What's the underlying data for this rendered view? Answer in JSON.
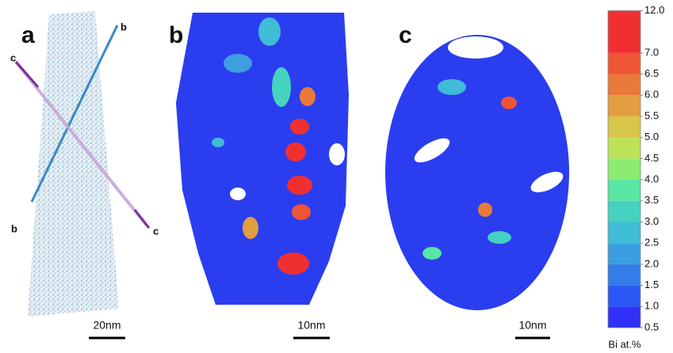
{
  "panels": [
    {
      "label": "a",
      "scale_bar": "20nm",
      "arrow_labels": [
        "b",
        "c",
        "b",
        "c"
      ]
    },
    {
      "label": "b",
      "scale_bar": "10nm"
    },
    {
      "label": "c",
      "scale_bar": "10nm"
    }
  ],
  "colorbar": {
    "label": "Bi at.%",
    "ticks": [
      {
        "value": 0.5,
        "label": "0.5"
      },
      {
        "value": 1,
        "label": "1.0"
      },
      {
        "value": 1.5,
        "label": "1.5"
      },
      {
        "value": 2,
        "label": "2.0"
      },
      {
        "value": 2.5,
        "label": "2.5"
      },
      {
        "value": 3,
        "label": "3.0"
      },
      {
        "value": 3.5,
        "label": "3.5"
      },
      {
        "value": 4,
        "label": "4.0"
      },
      {
        "value": 4.5,
        "label": "4.5"
      },
      {
        "value": 5,
        "label": "5.0"
      },
      {
        "value": 5.5,
        "label": "5.5"
      },
      {
        "value": 6,
        "label": "6.0"
      },
      {
        "value": 6.5,
        "label": "6.5"
      },
      {
        "value": 7,
        "label": "7.0"
      },
      {
        "value": 12,
        "label": "12.0"
      }
    ],
    "colors": [
      "#3030f8",
      "#2a58f4",
      "#347ce8",
      "#3a9ee0",
      "#3fbcd6",
      "#46d2c0",
      "#58e6a4",
      "#8cec72",
      "#bde25a",
      "#d8c64a",
      "#e39e40",
      "#ea7a3a",
      "#ee5535",
      "#f03030"
    ]
  }
}
